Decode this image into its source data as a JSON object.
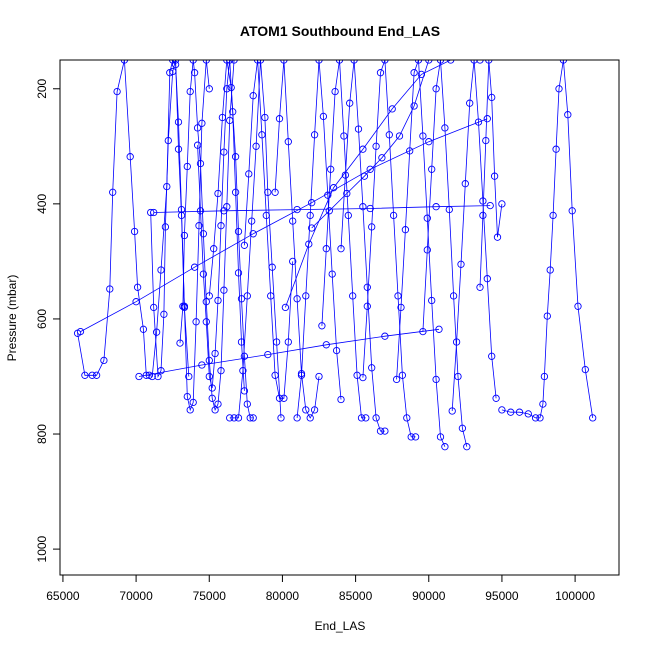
{
  "chart_data": {
    "type": "scatter",
    "title": "ATOM1 Southbound End_LAS",
    "xlabel": "End_LAS",
    "ylabel": "Pressure (mbar)",
    "xlim": [
      64800,
      103000
    ],
    "ylim": [
      1045,
      150
    ],
    "y_inverted": true,
    "grid": false,
    "legend": "none",
    "x_ticks": [
      {
        "value": 65000,
        "label": "65000"
      },
      {
        "value": 70000,
        "label": "70000"
      },
      {
        "value": 75000,
        "label": "75000"
      },
      {
        "value": 80000,
        "label": "80000"
      },
      {
        "value": 85000,
        "label": "85000"
      },
      {
        "value": 90000,
        "label": "90000"
      },
      {
        "value": 95000,
        "label": "95000"
      },
      {
        "value": 100000,
        "label": "100000"
      }
    ],
    "y_ticks": [
      {
        "value": 200,
        "label": "200"
      },
      {
        "value": 400,
        "label": "400"
      },
      {
        "value": 600,
        "label": "600"
      },
      {
        "value": 800,
        "label": "800"
      },
      {
        "value": 1000,
        "label": "1000"
      }
    ],
    "series_color": "#0000ff",
    "series": [
      {
        "x": [
          66000,
          66500,
          67000,
          67300,
          67800,
          68200,
          68400,
          68700,
          69200,
          69600,
          69900,
          70100,
          70500,
          70700,
          70900,
          71100,
          71400,
          71700,
          72100,
          72300,
          72500,
          72700,
          72900,
          73100,
          73300,
          73600
        ],
        "y": [
          625,
          698,
          698,
          698,
          672,
          548,
          380,
          205,
          150,
          318,
          448,
          545,
          618,
          698,
          698,
          700,
          623,
          515,
          370,
          172,
          150,
          158,
          258,
          410,
          580,
          700
        ]
      },
      {
        "x": [
          71000,
          71200,
          71500,
          71700,
          71900,
          72000,
          72200,
          72500,
          72700,
          72900,
          73100,
          73300,
          73500,
          73700,
          73900,
          74100,
          74300,
          74500,
          74800,
          75000
        ],
        "y": [
          415,
          580,
          700,
          690,
          592,
          440,
          290,
          170,
          150,
          305,
          420,
          578,
          735,
          758,
          745,
          605,
          438,
          260,
          150,
          200
        ]
      },
      {
        "x": [
          73000,
          73200,
          73300,
          73500,
          73700,
          73900,
          74000,
          74200,
          74400,
          74600,
          74800,
          75000,
          75200,
          75400,
          75600,
          75800,
          76000,
          76200,
          76400,
          76700
        ],
        "y": [
          642,
          578,
          455,
          335,
          205,
          150,
          172,
          268,
          330,
          452,
          570,
          672,
          738,
          758,
          748,
          690,
          550,
          405,
          255,
          150
        ]
      },
      {
        "x": [
          74200,
          74400,
          74600,
          74800,
          75000,
          75200,
          75400,
          75600,
          75800,
          76000,
          76200,
          76400,
          76600,
          76800,
          77000,
          77200,
          77400
        ],
        "y": [
          298,
          412,
          522,
          605,
          700,
          720,
          660,
          568,
          438,
          310,
          200,
          150,
          240,
          380,
          520,
          640,
          725
        ]
      },
      {
        "x": [
          75000,
          75300,
          75600,
          75900,
          76200,
          76500,
          76800,
          77000,
          77200,
          77400,
          77600,
          77800,
          78000
        ],
        "y": [
          560,
          478,
          382,
          250,
          150,
          198,
          318,
          448,
          565,
          665,
          748,
          772,
          772
        ]
      },
      {
        "x": [
          76400,
          76700,
          77000,
          77300,
          77600,
          77900,
          78200,
          78500,
          78800,
          79000,
          79300,
          79600,
          79900
        ],
        "y": [
          772,
          772,
          772,
          690,
          560,
          430,
          300,
          150,
          250,
          380,
          510,
          640,
          772
        ]
      },
      {
        "x": [
          77400,
          77700,
          78000,
          78300,
          78600,
          78900,
          79200,
          79500,
          79800,
          80100,
          80400,
          80700
        ],
        "y": [
          472,
          348,
          212,
          150,
          280,
          420,
          560,
          698,
          738,
          738,
          640,
          500
        ]
      },
      {
        "x": [
          79500,
          79800,
          80100,
          80400,
          80700,
          81000,
          81300,
          81600,
          81900,
          82200,
          82500
        ],
        "y": [
          380,
          252,
          150,
          292,
          430,
          565,
          695,
          758,
          772,
          758,
          700
        ]
      },
      {
        "x": [
          81000,
          81300,
          81600,
          81900,
          82200,
          82500,
          82800,
          83100,
          83400,
          83700,
          84000
        ],
        "y": [
          772,
          698,
          560,
          420,
          280,
          150,
          248,
          385,
          522,
          655,
          740
        ]
      },
      {
        "x": [
          82700,
          83000,
          83300,
          83600,
          83900,
          84200,
          84500,
          84800,
          85100,
          85400,
          85700
        ],
        "y": [
          612,
          478,
          340,
          205,
          150,
          282,
          420,
          560,
          698,
          772,
          772
        ]
      },
      {
        "x": [
          84000,
          84300,
          84600,
          84900,
          85200,
          85500,
          85800,
          86100,
          86400,
          86700,
          87000
        ],
        "y": [
          478,
          350,
          225,
          150,
          270,
          405,
          545,
          685,
          772,
          795,
          795
        ]
      },
      {
        "x": [
          85500,
          85800,
          86100,
          86400,
          86700,
          87000,
          87300,
          87600,
          87900,
          88200,
          88500,
          88800,
          89100
        ],
        "y": [
          702,
          578,
          440,
          300,
          172,
          150,
          280,
          420,
          560,
          698,
          772,
          805,
          805
        ]
      },
      {
        "x": [
          87800,
          88100,
          88400,
          88700,
          89000,
          89300,
          89600,
          89900,
          90200,
          90500,
          90800,
          91100
        ],
        "y": [
          705,
          580,
          445,
          308,
          172,
          150,
          282,
          425,
          568,
          705,
          805,
          822
        ]
      },
      {
        "x": [
          89600,
          89900,
          90200,
          90500,
          90800,
          91100,
          91400,
          91700,
          92000,
          92300,
          92600
        ],
        "y": [
          622,
          480,
          340,
          200,
          150,
          268,
          410,
          560,
          700,
          790,
          822
        ]
      },
      {
        "x": [
          91600,
          91900,
          92200,
          92500,
          92800,
          93100,
          93400,
          93700,
          94000,
          94300,
          94600
        ],
        "y": [
          760,
          640,
          505,
          365,
          225,
          150,
          258,
          395,
          530,
          665,
          738
        ]
      },
      {
        "x": [
          93500,
          93700,
          93900,
          94100,
          94300,
          94500,
          94700,
          95000
        ],
        "y": [
          545,
          420,
          290,
          150,
          215,
          352,
          458,
          400
        ]
      },
      {
        "x": [
          95000,
          95600,
          96200,
          96800,
          97300,
          97600,
          97800,
          97900,
          98100,
          98300,
          98500,
          98700,
          98900,
          99200,
          99500,
          99800,
          100200,
          100700,
          101200
        ],
        "y": [
          758,
          762,
          762,
          765,
          772,
          772,
          748,
          700,
          595,
          515,
          420,
          305,
          200,
          150,
          245,
          412,
          578,
          688,
          772
        ]
      },
      {
        "x": [
          66200,
          70000,
          74000,
          78000,
          82000,
          86000,
          90000,
          94000
        ],
        "y": [
          622,
          570,
          510,
          452,
          398,
          340,
          292,
          252
        ]
      },
      {
        "x": [
          71200,
          76000,
          81000,
          86000,
          90500,
          94200
        ],
        "y": [
          415,
          412,
          410,
          408,
          405,
          403
        ]
      },
      {
        "x": [
          70200,
          74500,
          79000,
          83000,
          87000,
          90700
        ],
        "y": [
          700,
          680,
          662,
          645,
          630,
          618
        ]
      },
      {
        "x": [
          80200,
          81800,
          83500,
          85500,
          87500,
          89500,
          91500,
          93500
        ],
        "y": [
          580,
          470,
          372,
          305,
          235,
          175,
          150,
          150
        ]
      },
      {
        "x": [
          82000,
          83200,
          84400,
          85600,
          86800,
          88000,
          89000,
          90000
        ],
        "y": [
          442,
          412,
          382,
          352,
          320,
          282,
          230,
          150
        ]
      }
    ]
  }
}
